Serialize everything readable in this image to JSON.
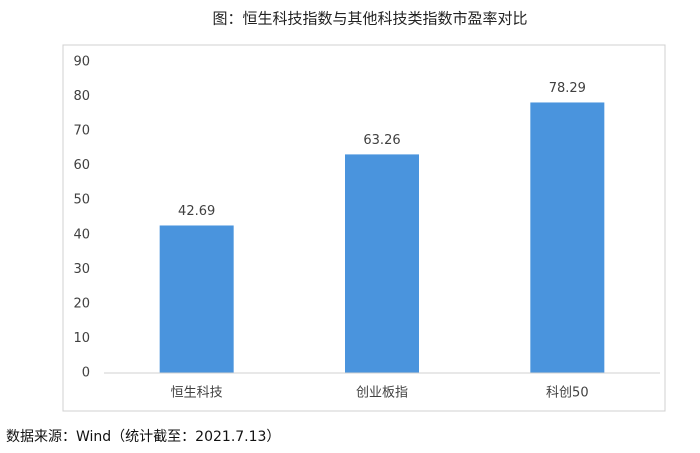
{
  "chart_data": {
    "type": "bar",
    "title": "图：恒生科技指数与其他科技类指数市盈率对比",
    "categories": [
      "恒生科技",
      "创业板指",
      "科创50"
    ],
    "values": [
      42.69,
      63.26,
      78.29
    ],
    "color": "#4a94dd",
    "ylim": [
      0,
      90
    ],
    "yticks": [
      0,
      10,
      20,
      30,
      40,
      50,
      60,
      70,
      80,
      90
    ],
    "grid": false,
    "source": "数据来源：Wind（统计截至：2021.7.13）"
  }
}
